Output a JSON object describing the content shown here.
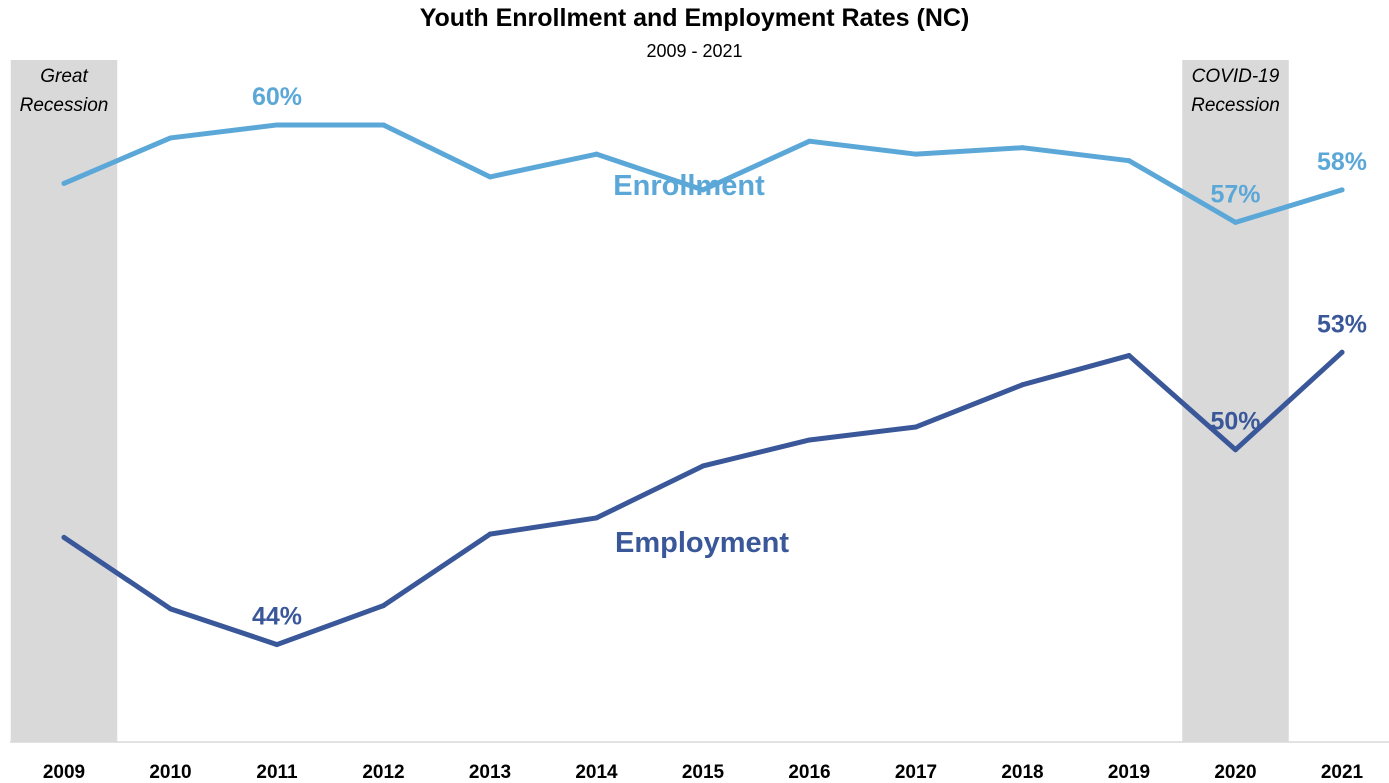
{
  "chart_data": {
    "type": "line",
    "title": "Youth Enrollment and Employment Rates (NC)",
    "subtitle": "2009 - 2021",
    "x": [
      "2009",
      "2010",
      "2011",
      "2012",
      "2013",
      "2014",
      "2015",
      "2016",
      "2017",
      "2018",
      "2019",
      "2020",
      "2021"
    ],
    "series": [
      {
        "name": "Enrollment",
        "color": "#5BA8D8",
        "values": [
          58.2,
          59.6,
          60.0,
          60.0,
          58.4,
          59.1,
          58.0,
          59.5,
          59.1,
          59.3,
          58.9,
          57.0,
          58.0
        ]
      },
      {
        "name": "Employment",
        "color": "#3A5899",
        "values": [
          47.3,
          45.1,
          44.0,
          45.2,
          47.4,
          47.9,
          49.5,
          50.3,
          50.7,
          52.0,
          52.9,
          50.0,
          53.0
        ]
      }
    ],
    "data_labels": [
      {
        "series": 0,
        "index": 2,
        "text": "60%"
      },
      {
        "series": 0,
        "index": 11,
        "text": "57%"
      },
      {
        "series": 0,
        "index": 12,
        "text": "58%"
      },
      {
        "series": 1,
        "index": 2,
        "text": "44%"
      },
      {
        "series": 1,
        "index": 11,
        "text": "50%"
      },
      {
        "series": 1,
        "index": 12,
        "text": "53%"
      }
    ],
    "shaded_periods": [
      {
        "label_lines": [
          "Great",
          "Recession"
        ],
        "start": "2009",
        "end": "2009"
      },
      {
        "label_lines": [
          "COVID-19",
          "Recession"
        ],
        "start": "2020",
        "end": "2020"
      }
    ],
    "ylim": [
      41,
      62
    ],
    "grid": false,
    "legend": "none"
  }
}
